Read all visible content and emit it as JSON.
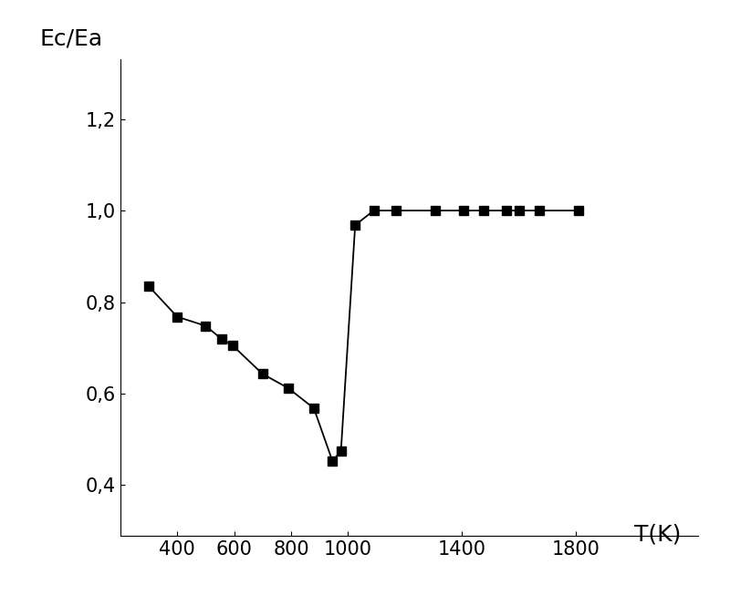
{
  "chart_data": {
    "type": "line",
    "x_label": "T(K)",
    "y_label": "Ec/Ea",
    "x": [
      300,
      400,
      500,
      555,
      595,
      700,
      790,
      880,
      945,
      975,
      1025,
      1090,
      1170,
      1305,
      1405,
      1475,
      1555,
      1600,
      1670,
      1810
    ],
    "values": [
      0.835,
      0.768,
      0.748,
      0.72,
      0.705,
      0.643,
      0.612,
      0.568,
      0.453,
      0.474,
      0.968,
      1.0,
      1.0,
      1.0,
      1.0,
      1.0,
      1.0,
      1.0,
      1.0,
      1.0
    ],
    "color": "#000000",
    "marker": "square",
    "line_style": "solid",
    "xlim": [
      200,
      2230
    ],
    "ylim": [
      0.29,
      1.33
    ],
    "xticks": [
      400,
      600,
      800,
      1000,
      1400,
      1800
    ],
    "yticks": [
      {
        "value": 0.4,
        "label": "0,4"
      },
      {
        "value": 0.6,
        "label": "0,6"
      },
      {
        "value": 0.8,
        "label": "0,8"
      },
      {
        "value": 1.0,
        "label": "1,0"
      },
      {
        "value": 1.2,
        "label": "1,2"
      }
    ],
    "grid": false
  }
}
